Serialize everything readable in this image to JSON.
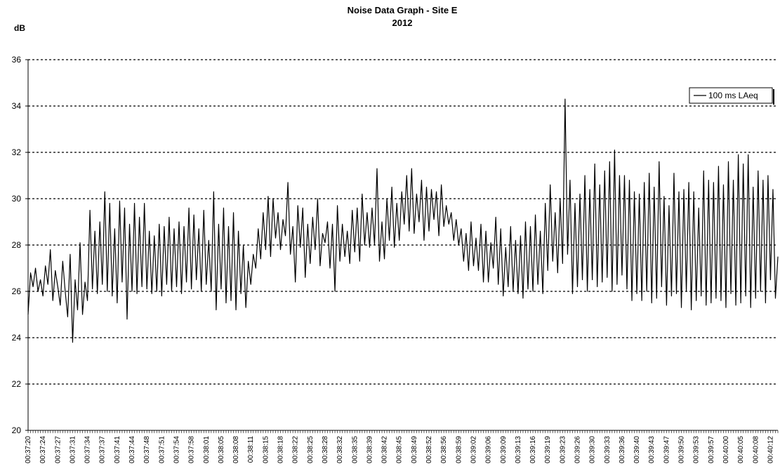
{
  "chart_data": {
    "type": "line",
    "title": "Noise Data Graph - Site E",
    "subtitle": "2012",
    "y_label": "dB",
    "categories": [
      "00:37:20",
      null,
      null,
      null,
      null,
      null,
      "00:37:24",
      null,
      null,
      null,
      null,
      null,
      "00:37:27",
      null,
      null,
      null,
      null,
      null,
      "00:37:31",
      null,
      null,
      null,
      null,
      null,
      "00:37:34",
      null,
      null,
      null,
      null,
      null,
      "00:37:37",
      null,
      null,
      null,
      null,
      null,
      "00:37:41",
      null,
      null,
      null,
      null,
      null,
      "00:37:44",
      null,
      null,
      null,
      null,
      null,
      "00:37:48",
      null,
      null,
      null,
      null,
      null,
      "00:37:51",
      null,
      null,
      null,
      null,
      null,
      "00:37:54",
      null,
      null,
      null,
      null,
      null,
      "00:37:58",
      null,
      null,
      null,
      null,
      null,
      "00:38:01",
      null,
      null,
      null,
      null,
      null,
      "00:38:05",
      null,
      null,
      null,
      null,
      null,
      "00:38:08",
      null,
      null,
      null,
      null,
      null,
      "00:38:11",
      null,
      null,
      null,
      null,
      null,
      "00:38:15",
      null,
      null,
      null,
      null,
      null,
      "00:38:18",
      null,
      null,
      null,
      null,
      null,
      "00:38:22",
      null,
      null,
      null,
      null,
      null,
      "00:38:25",
      null,
      null,
      null,
      null,
      null,
      "00:38:28",
      null,
      null,
      null,
      null,
      null,
      "00:38:32",
      null,
      null,
      null,
      null,
      null,
      "00:38:35",
      null,
      null,
      null,
      null,
      null,
      "00:38:39",
      null,
      null,
      null,
      null,
      null,
      "00:38:42",
      null,
      null,
      null,
      null,
      null,
      "00:38:45",
      null,
      null,
      null,
      null,
      null,
      "00:38:49",
      null,
      null,
      null,
      null,
      null,
      "00:38:52",
      null,
      null,
      null,
      null,
      null,
      "00:38:56",
      null,
      null,
      null,
      null,
      null,
      "00:38:59",
      null,
      null,
      null,
      null,
      null,
      "00:39:02",
      null,
      null,
      null,
      null,
      null,
      "00:39:06",
      null,
      null,
      null,
      null,
      null,
      "00:39:09",
      null,
      null,
      null,
      null,
      null,
      "00:39:13",
      null,
      null,
      null,
      null,
      null,
      "00:39:16",
      null,
      null,
      null,
      null,
      null,
      "00:39:19",
      null,
      null,
      null,
      null,
      null,
      "00:39:23",
      null,
      null,
      null,
      null,
      null,
      "00:39:26",
      null,
      null,
      null,
      null,
      null,
      "00:39:30",
      null,
      null,
      null,
      null,
      null,
      "00:39:33",
      null,
      null,
      null,
      null,
      null,
      "00:39:36",
      null,
      null,
      null,
      null,
      null,
      "00:39:40",
      null,
      null,
      null,
      null,
      null,
      "00:39:43",
      null,
      null,
      null,
      null,
      null,
      "00:39:47",
      null,
      null,
      null,
      null,
      null,
      "00:39:50",
      null,
      null,
      null,
      null,
      null,
      "00:39:53",
      null,
      null,
      null,
      null,
      null,
      "00:39:57",
      null,
      null,
      null,
      null,
      null,
      "00:40:00",
      null,
      null,
      null,
      null,
      null,
      "00:40:05",
      null,
      null,
      null,
      null,
      null,
      "00:40:08",
      null,
      null,
      null,
      null,
      null,
      "00:40:12",
      null,
      null,
      null
    ],
    "series": [
      {
        "name": "100 ms LAeq",
        "color": "#000000",
        "values": [
          25.0,
          26.8,
          26.2,
          27.0,
          26.0,
          26.5,
          25.8,
          27.1,
          26.3,
          27.8,
          25.6,
          26.9,
          26.2,
          25.4,
          27.3,
          26.0,
          24.9,
          27.6,
          23.8,
          26.5,
          25.2,
          28.1,
          25.0,
          26.4,
          25.6,
          29.5,
          26.1,
          28.6,
          25.9,
          29.0,
          26.3,
          30.3,
          26.0,
          29.8,
          25.8,
          28.7,
          25.5,
          29.9,
          26.4,
          29.6,
          24.8,
          28.9,
          26.0,
          29.8,
          25.9,
          29.2,
          26.2,
          29.8,
          26.1,
          28.6,
          25.9,
          28.4,
          26.0,
          28.9,
          25.8,
          28.8,
          26.3,
          29.2,
          26.0,
          28.7,
          26.2,
          29.0,
          25.9,
          28.8,
          26.4,
          29.6,
          26.1,
          29.3,
          26.5,
          28.7,
          26.0,
          29.5,
          26.3,
          28.2,
          26.0,
          30.3,
          25.2,
          28.9,
          26.1,
          29.6,
          25.5,
          28.8,
          25.6,
          29.4,
          25.2,
          28.6,
          25.9,
          28.0,
          25.3,
          27.3,
          26.3,
          27.6,
          27.0,
          28.7,
          27.4,
          29.4,
          27.8,
          30.1,
          27.5,
          30.0,
          28.3,
          29.4,
          27.8,
          29.1,
          28.4,
          30.7,
          27.6,
          28.8,
          26.4,
          29.7,
          27.9,
          29.6,
          26.6,
          28.9,
          27.2,
          29.2,
          27.8,
          30.0,
          27.1,
          28.5,
          28.1,
          29.0,
          27.0,
          28.9,
          26.0,
          29.7,
          27.3,
          28.9,
          27.5,
          28.6,
          27.2,
          29.5,
          27.7,
          29.6,
          27.3,
          30.2,
          28.0,
          29.4,
          27.9,
          29.6,
          28.0,
          31.3,
          27.3,
          29.0,
          27.4,
          30.0,
          28.2,
          30.5,
          27.9,
          29.8,
          28.2,
          30.3,
          28.9,
          31.0,
          28.6,
          31.3,
          28.5,
          30.2,
          29.0,
          30.8,
          28.2,
          30.5,
          28.6,
          30.4,
          29.1,
          30.3,
          28.4,
          30.6,
          28.8,
          29.7,
          28.9,
          29.4,
          28.2,
          29.1,
          28.0,
          28.7,
          27.3,
          28.5,
          26.9,
          29.0,
          27.1,
          28.3,
          26.9,
          28.9,
          26.4,
          28.6,
          26.4,
          28.1,
          27.0,
          29.2,
          26.3,
          28.7,
          25.8,
          27.9,
          26.2,
          28.8,
          26.0,
          28.2,
          25.9,
          28.4,
          25.7,
          29.0,
          26.1,
          28.8,
          26.0,
          29.3,
          26.3,
          28.6,
          25.9,
          29.8,
          26.9,
          30.6,
          27.3,
          29.4,
          26.8,
          30.0,
          27.2,
          34.3,
          27.6,
          30.8,
          25.9,
          29.8,
          26.2,
          30.2,
          26.5,
          31.0,
          26.0,
          30.4,
          26.5,
          31.5,
          26.2,
          30.6,
          26.4,
          31.2,
          26.6,
          31.6,
          26.0,
          32.1,
          26.3,
          31.0,
          26.7,
          31.0,
          26.1,
          30.8,
          25.6,
          30.3,
          25.9,
          30.2,
          25.6,
          30.7,
          26.0,
          31.1,
          25.5,
          30.5,
          25.7,
          31.6,
          26.2,
          30.1,
          25.4,
          29.7,
          25.8,
          31.1,
          25.9,
          30.3,
          25.3,
          30.4,
          26.0,
          30.7,
          25.2,
          30.3,
          25.6,
          29.6,
          25.8,
          31.2,
          25.4,
          30.8,
          25.5,
          30.7,
          25.7,
          31.4,
          25.6,
          30.6,
          25.3,
          31.6,
          25.9,
          30.8,
          25.4,
          31.9,
          25.5,
          31.5,
          25.8,
          31.9,
          25.3,
          30.5,
          25.7,
          31.2,
          26.0,
          30.8,
          25.5,
          31.0,
          26.5,
          30.4,
          25.7,
          27.5
        ]
      }
    ],
    "ylim": [
      20,
      36
    ],
    "yticks": [
      20,
      22,
      24,
      26,
      28,
      30,
      32,
      34,
      36
    ],
    "grid": true,
    "legend": "top-right"
  }
}
